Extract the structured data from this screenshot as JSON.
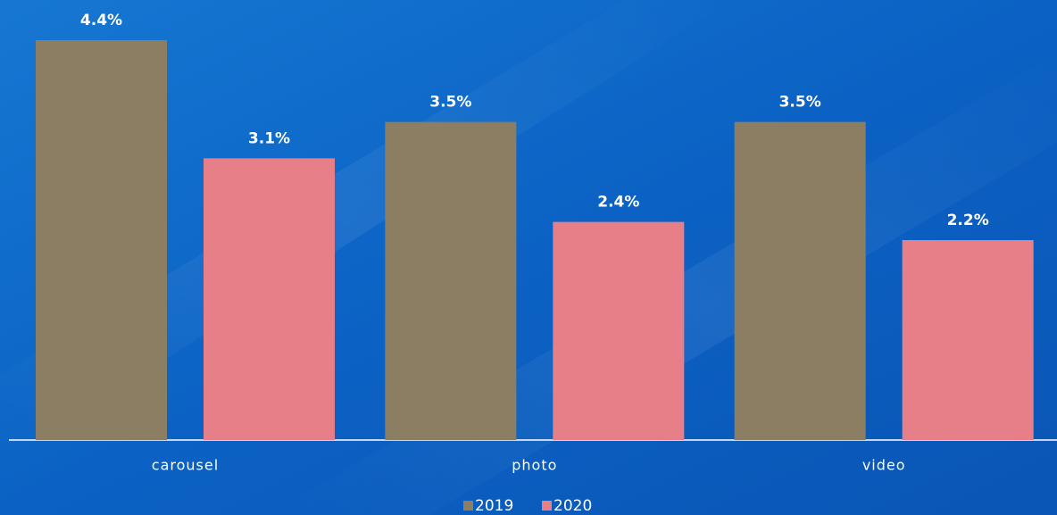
{
  "chart_data": {
    "type": "bar",
    "categories": [
      "carousel",
      "photo",
      "video"
    ],
    "series": [
      {
        "name": "2019",
        "color": "#8b7e62",
        "values": [
          4.4,
          3.5,
          3.5
        ],
        "value_labels": [
          "4.4%",
          "3.5%",
          "3.5%"
        ]
      },
      {
        "name": "2020",
        "color": "#e77f88",
        "values": [
          3.1,
          2.4,
          2.2
        ],
        "value_labels": [
          "3.1%",
          "2.4%",
          "2.2%"
        ]
      }
    ],
    "legend": "bottom"
  }
}
